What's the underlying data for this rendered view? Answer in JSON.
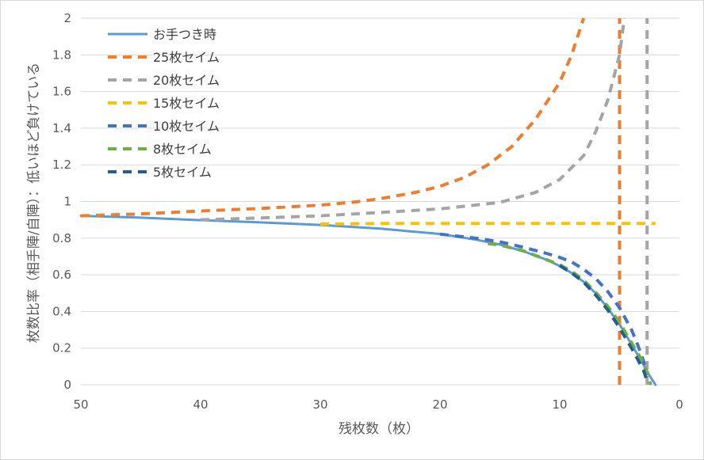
{
  "chart_data": {
    "type": "line",
    "title": "",
    "xlabel": "残枚数（枚）",
    "ylabel": "枚数比率（相手陣/自陣）：低いほど負けている",
    "xlim": [
      50,
      0
    ],
    "x_reversed": true,
    "ylim": [
      0,
      2
    ],
    "xticks": [
      "50",
      "40",
      "30",
      "20",
      "10",
      "0"
    ],
    "yticks": [
      "0",
      "0.2",
      "0.4",
      "0.6",
      "0.8",
      "1",
      "1.2",
      "1.4",
      "1.6",
      "1.8",
      "2"
    ],
    "grid": "horizontal",
    "legend_position": "top-left",
    "series": [
      {
        "name": "お手つき時",
        "color": "#5b9bd5",
        "style": "solid",
        "points": [
          [
            50,
            0.922
          ],
          [
            45,
            0.912
          ],
          [
            40,
            0.898
          ],
          [
            35,
            0.886
          ],
          [
            30,
            0.872
          ],
          [
            25,
            0.852
          ],
          [
            20,
            0.823
          ],
          [
            17,
            0.792
          ],
          [
            15,
            0.765
          ],
          [
            13,
            0.728
          ],
          [
            11,
            0.68
          ],
          [
            10,
            0.648
          ],
          [
            9,
            0.61
          ],
          [
            8,
            0.562
          ],
          [
            7,
            0.5
          ],
          [
            6,
            0.42
          ],
          [
            5,
            0.33
          ],
          [
            4,
            0.22
          ],
          [
            3,
            0.11
          ],
          [
            2.5,
            0.05
          ],
          [
            2,
            0
          ]
        ]
      },
      {
        "name": "25枚セイム",
        "color": "#ed7d31",
        "style": "dashed",
        "points": [
          [
            50,
            0.922
          ],
          [
            45,
            0.932
          ],
          [
            40,
            0.948
          ],
          [
            35,
            0.962
          ],
          [
            30,
            0.98
          ],
          [
            27,
            0.998
          ],
          [
            25,
            1.015
          ],
          [
            22,
            1.05
          ],
          [
            20,
            1.083
          ],
          [
            18,
            1.13
          ],
          [
            16,
            1.2
          ],
          [
            14,
            1.3
          ],
          [
            12,
            1.45
          ],
          [
            10,
            1.65
          ],
          [
            9,
            1.8
          ],
          [
            8.5,
            1.9
          ],
          [
            8,
            2.0
          ]
        ],
        "asymptote": [
          5,
          0,
          2
        ]
      },
      {
        "name": "20枚セイム",
        "color": "#a5a5a5",
        "style": "dashed",
        "points": [
          [
            40,
            0.9
          ],
          [
            35,
            0.91
          ],
          [
            30,
            0.922
          ],
          [
            25,
            0.94
          ],
          [
            20,
            0.96
          ],
          [
            15,
            0.995
          ],
          [
            12,
            1.05
          ],
          [
            10,
            1.12
          ],
          [
            8,
            1.25
          ],
          [
            7,
            1.38
          ],
          [
            6,
            1.55
          ],
          [
            5,
            1.8
          ],
          [
            4.6,
            2.0
          ]
        ],
        "asymptote": [
          2.7,
          0,
          2
        ]
      },
      {
        "name": "15枚セイム",
        "color": "#ffc000",
        "style": "dashed",
        "points": [
          [
            30,
            0.877
          ],
          [
            25,
            0.88
          ],
          [
            20,
            0.88
          ],
          [
            15,
            0.88
          ],
          [
            10,
            0.88
          ],
          [
            5,
            0.88
          ],
          [
            2,
            0.88
          ]
        ]
      },
      {
        "name": "10枚セイム",
        "color": "#4472c4",
        "style": "dashed",
        "points": [
          [
            20,
            0.822
          ],
          [
            17,
            0.8
          ],
          [
            15,
            0.78
          ],
          [
            13,
            0.75
          ],
          [
            11,
            0.715
          ],
          [
            10,
            0.695
          ],
          [
            9,
            0.67
          ],
          [
            8,
            0.63
          ],
          [
            7,
            0.58
          ],
          [
            6,
            0.51
          ],
          [
            5,
            0.42
          ],
          [
            4,
            0.3
          ],
          [
            3.5,
            0.22
          ],
          [
            3,
            0.13
          ],
          [
            2.7,
            0.05
          ]
        ]
      },
      {
        "name": "8枚セイム",
        "color": "#70ad47",
        "style": "dashed",
        "points": [
          [
            16,
            0.77
          ],
          [
            15,
            0.763
          ],
          [
            13,
            0.73
          ],
          [
            11,
            0.68
          ],
          [
            10,
            0.655
          ],
          [
            9,
            0.62
          ],
          [
            8,
            0.57
          ],
          [
            7,
            0.505
          ],
          [
            6,
            0.43
          ],
          [
            5,
            0.34
          ],
          [
            4,
            0.23
          ],
          [
            3,
            0.12
          ],
          [
            2.4,
            0
          ]
        ]
      },
      {
        "name": "5枚セイム",
        "color": "#255e91",
        "style": "dashed",
        "points": [
          [
            10,
            0.65
          ],
          [
            9,
            0.61
          ],
          [
            8,
            0.56
          ],
          [
            7,
            0.49
          ],
          [
            6,
            0.41
          ],
          [
            5,
            0.31
          ],
          [
            4,
            0.2
          ],
          [
            3,
            0.08
          ],
          [
            2.7,
            0.02
          ]
        ]
      }
    ]
  }
}
